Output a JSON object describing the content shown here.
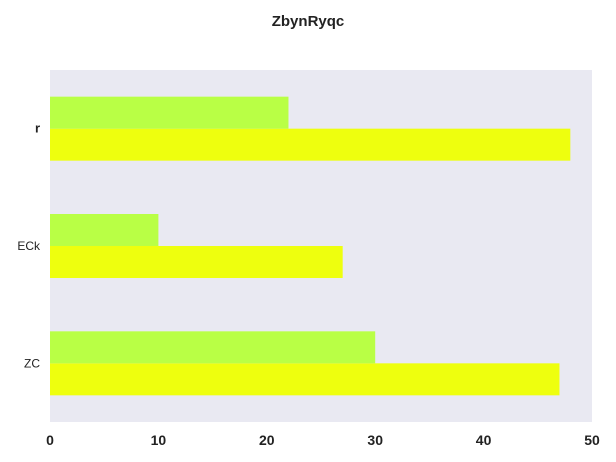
{
  "chart_data": {
    "type": "bar",
    "orientation": "horizontal",
    "title": "ZbynRyqc",
    "xlabel": "",
    "ylabel": "",
    "categories": [
      "ZC",
      "ECk",
      "r"
    ],
    "series": [
      {
        "values": [
          47,
          27,
          48
        ],
        "color": "#eeff0e"
      },
      {
        "values": [
          30,
          10,
          22
        ],
        "color": "#b9ff45"
      }
    ],
    "xlim": [
      0,
      50
    ],
    "xticks": [
      "0",
      "10",
      "20",
      "30",
      "40",
      "50"
    ],
    "background": "#e9e9f2",
    "grid": false,
    "legend": false
  }
}
